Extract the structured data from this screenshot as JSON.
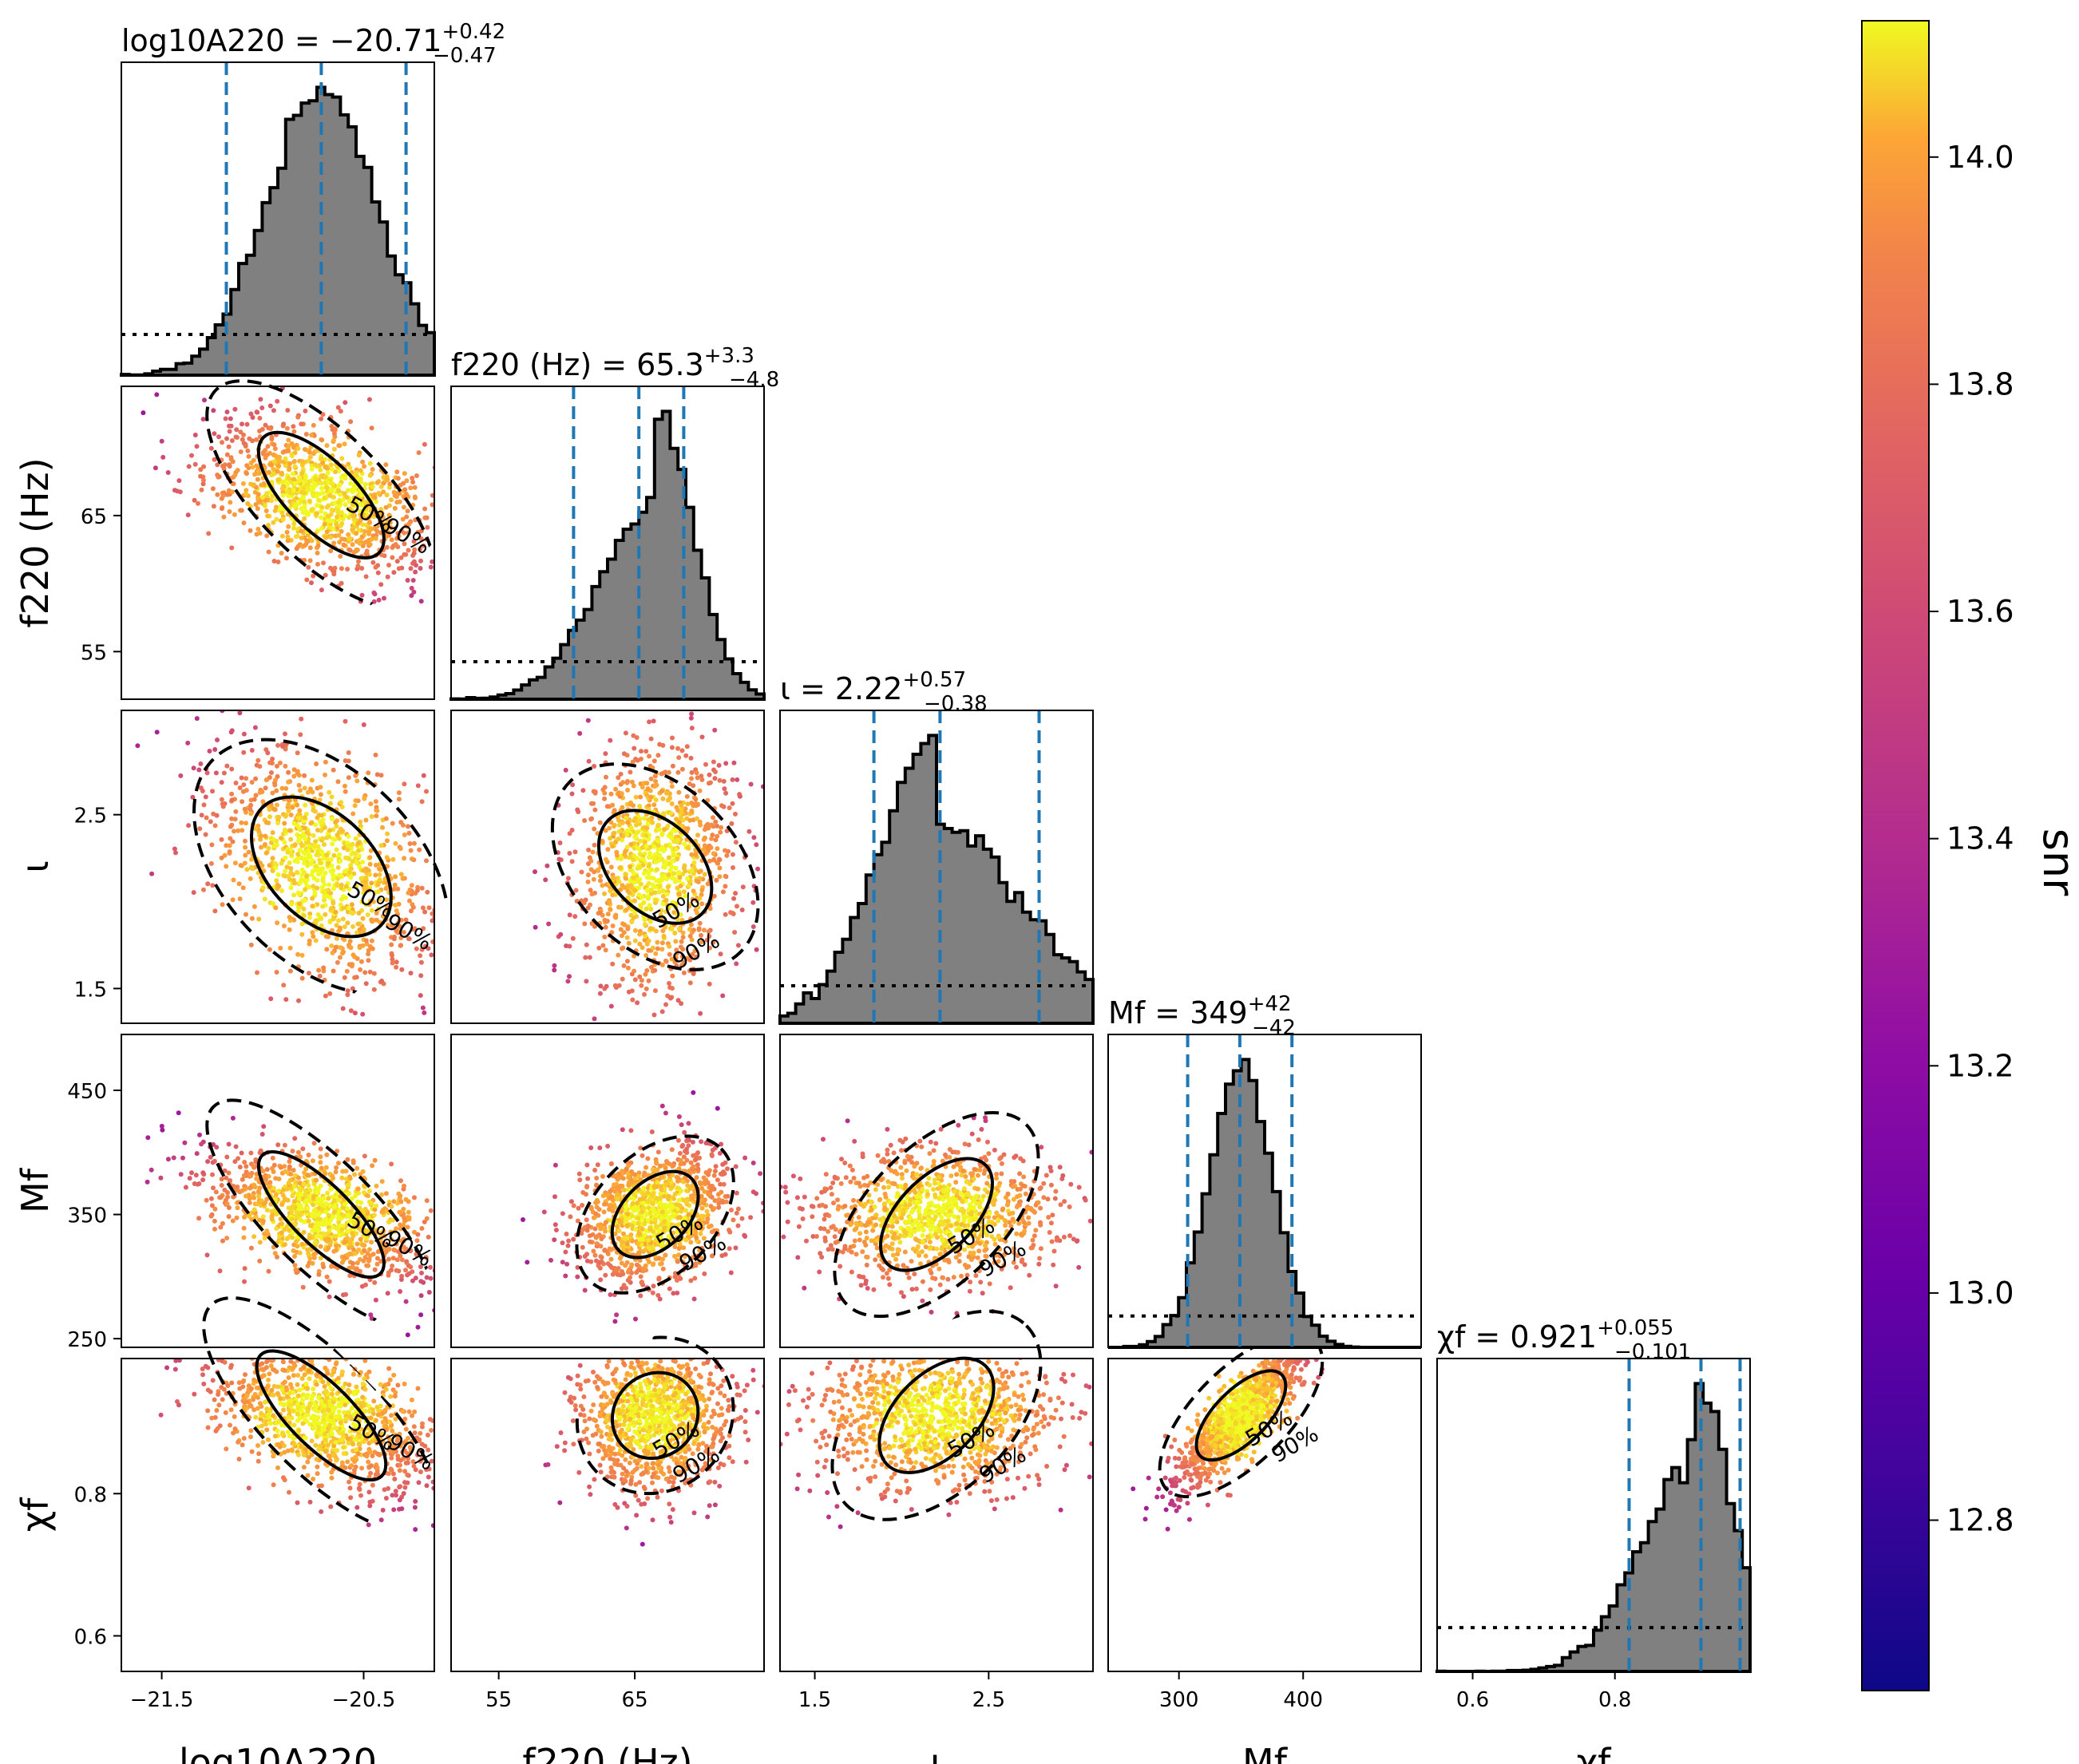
{
  "chart_data": {
    "type": "scatter",
    "subtype": "corner-plot",
    "parameters": [
      {
        "key": "logA",
        "label": "log10A220",
        "range": [
          -21.7,
          -20.15
        ],
        "ticks": [
          -21.5,
          -20.5
        ],
        "tick_labels": [
          "−21.5",
          "−20.5"
        ],
        "summary": {
          "median": "−20.71",
          "plus": "+0.42",
          "minus": "−0.47"
        }
      },
      {
        "key": "f220",
        "label": "f220 (Hz)",
        "range": [
          51.5,
          74.5
        ],
        "ticks": [
          55,
          65
        ],
        "tick_labels": [
          "55",
          "65"
        ],
        "summary": {
          "median": "65.3",
          "plus": "+3.3",
          "minus": "−4.8"
        }
      },
      {
        "key": "iota",
        "label": "ι",
        "range": [
          1.3,
          3.1
        ],
        "ticks": [
          1.5,
          2.5
        ],
        "tick_labels": [
          "1.5",
          "2.5"
        ],
        "summary": {
          "median": "2.22",
          "plus": "+0.57",
          "minus": "−0.38"
        }
      },
      {
        "key": "Mf",
        "label": "Mf",
        "range": [
          243,
          495
        ],
        "ticks": [
          250,
          350,
          450
        ],
        "tick_labels": [
          "250",
          "350",
          "450"
        ],
        "x_tick_labels": [
          "300",
          "400"
        ],
        "summary": {
          "median": "349",
          "plus": "+42",
          "minus": "−42"
        }
      },
      {
        "key": "chif",
        "label": "χf",
        "range": [
          0.55,
          0.99
        ],
        "ticks": [
          0.6,
          0.8
        ],
        "tick_labels": [
          "0.6",
          "0.8"
        ],
        "x_tick_labels": [
          "0.6",
          "0.8"
        ],
        "summary": {
          "median": "0.921",
          "plus": "+0.055",
          "minus": "−0.101"
        }
      }
    ],
    "quantile_lines": [
      [
        -21.18,
        -20.71,
        -20.29
      ],
      [
        60.5,
        65.3,
        68.6
      ],
      [
        1.84,
        2.22,
        2.79
      ],
      [
        307,
        349,
        391
      ],
      [
        0.82,
        0.921,
        0.976
      ]
    ],
    "contour_levels": [
      "50%",
      "90%"
    ],
    "colorbar": {
      "label": "snr",
      "range": [
        12.65,
        14.12
      ],
      "ticks": [
        12.8,
        13.0,
        13.2,
        13.4,
        13.6,
        13.8,
        14.0
      ],
      "tick_labels": [
        "12.8",
        "13.0",
        "13.2",
        "13.4",
        "13.6",
        "13.8",
        "14.0"
      ],
      "colormap": "plasma"
    },
    "colors": {
      "histogram_fill": "#808080",
      "quantile_line": "#1f77b4",
      "contour": "#000000"
    },
    "grid": false,
    "legend": "none"
  }
}
